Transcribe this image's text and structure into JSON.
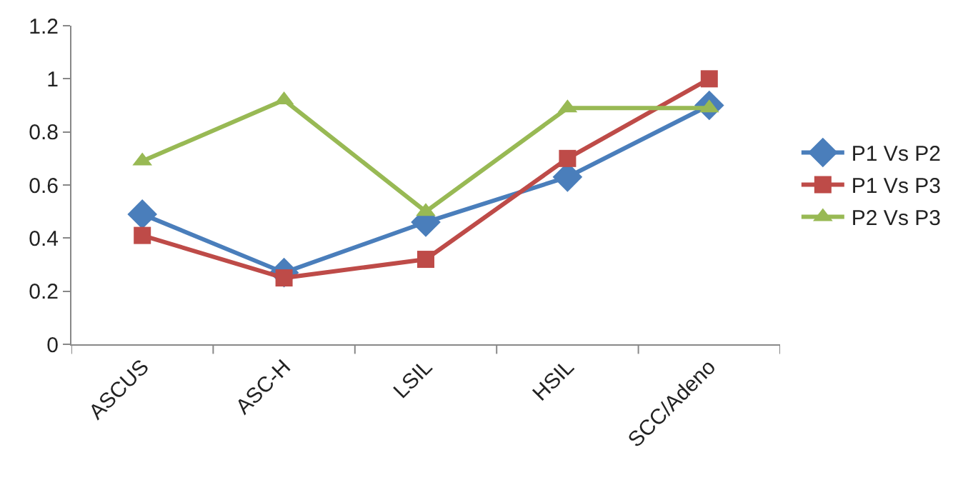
{
  "chart_data": {
    "type": "line",
    "categories": [
      "ASCUS",
      "ASC-H",
      "LSIL",
      "HSIL",
      "SCC/Adeno"
    ],
    "series": [
      {
        "name": "P1 Vs P2",
        "color": "#4a7ebb",
        "marker": "diamond",
        "values": [
          0.49,
          0.27,
          0.46,
          0.63,
          0.9
        ]
      },
      {
        "name": "P1 Vs P3",
        "color": "#be4b48",
        "marker": "square",
        "values": [
          0.41,
          0.25,
          0.32,
          0.7,
          1.0
        ]
      },
      {
        "name": "P2 Vs P3",
        "color": "#98b954",
        "marker": "triangle",
        "values": [
          0.69,
          0.92,
          0.5,
          0.89,
          0.89
        ]
      }
    ],
    "ylim": [
      0,
      1.2
    ],
    "yticks": [
      0,
      0.2,
      0.4,
      0.6,
      0.8,
      1,
      1.2
    ],
    "grid": false,
    "legend": "right",
    "line_style": "solid"
  }
}
